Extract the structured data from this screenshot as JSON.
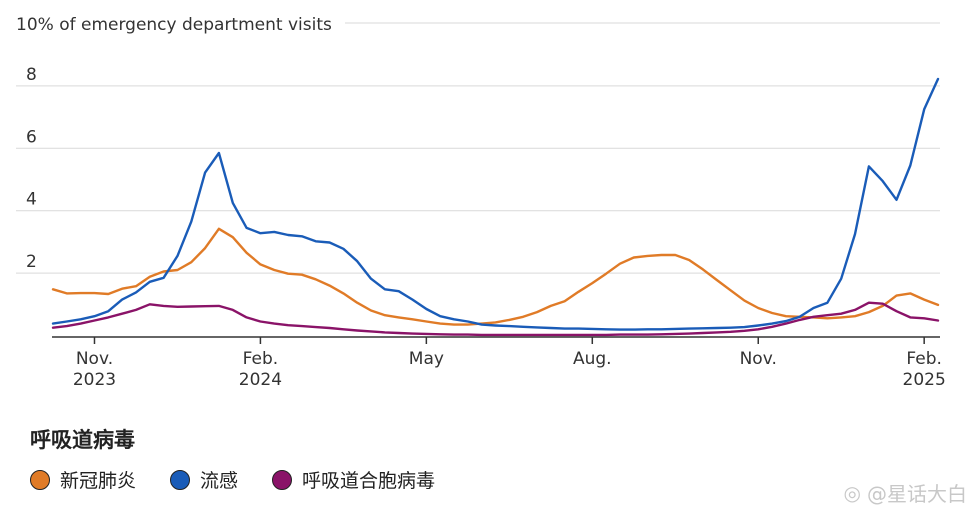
{
  "chart_data": {
    "type": "line",
    "ylabel": "10% of emergency department visits",
    "y_ticks": [
      2,
      4,
      6,
      8
    ],
    "ylim": [
      0,
      9
    ],
    "xlim": [
      0,
      64
    ],
    "x_ticks": [
      {
        "x": 3,
        "label": "Nov.",
        "sublabel": "2023"
      },
      {
        "x": 15,
        "label": "Feb.",
        "sublabel": "2024"
      },
      {
        "x": 27,
        "label": "May",
        "sublabel": ""
      },
      {
        "x": 39,
        "label": "Aug.",
        "sublabel": ""
      },
      {
        "x": 51,
        "label": "Nov.",
        "sublabel": ""
      },
      {
        "x": 63,
        "label": "Feb.",
        "sublabel": "2025"
      }
    ],
    "x": [
      0,
      1,
      2,
      3,
      4,
      5,
      6,
      7,
      8,
      9,
      10,
      11,
      12,
      13,
      14,
      15,
      16,
      17,
      18,
      19,
      20,
      21,
      22,
      23,
      24,
      25,
      26,
      27,
      28,
      29,
      30,
      31,
      32,
      33,
      34,
      35,
      36,
      37,
      38,
      39,
      40,
      41,
      42,
      43,
      44,
      45,
      46,
      47,
      48,
      49,
      50,
      51,
      52,
      53,
      54,
      55,
      56,
      57,
      58,
      59,
      60,
      61,
      62,
      63,
      64
    ],
    "series": [
      {
        "name": "新冠肺炎",
        "color": "#e07b27",
        "values": [
          1.48,
          1.35,
          1.36,
          1.36,
          1.33,
          1.5,
          1.58,
          1.88,
          2.05,
          2.1,
          2.35,
          2.8,
          3.42,
          3.15,
          2.65,
          2.28,
          2.1,
          1.98,
          1.95,
          1.8,
          1.6,
          1.35,
          1.05,
          0.8,
          0.65,
          0.58,
          0.52,
          0.45,
          0.38,
          0.35,
          0.35,
          0.38,
          0.42,
          0.5,
          0.6,
          0.75,
          0.95,
          1.1,
          1.4,
          1.68,
          1.98,
          2.3,
          2.5,
          2.55,
          2.58,
          2.58,
          2.42,
          2.12,
          1.78,
          1.45,
          1.12,
          0.88,
          0.72,
          0.62,
          0.6,
          0.58,
          0.55,
          0.58,
          0.62,
          0.75,
          0.95,
          1.28,
          1.35,
          1.15,
          0.98
        ]
      },
      {
        "name": "流感",
        "color": "#1a5cb8",
        "values": [
          0.38,
          0.45,
          0.52,
          0.62,
          0.78,
          1.15,
          1.38,
          1.72,
          1.85,
          2.55,
          3.65,
          5.22,
          5.85,
          4.25,
          3.45,
          3.28,
          3.32,
          3.22,
          3.18,
          3.02,
          2.98,
          2.78,
          2.38,
          1.82,
          1.48,
          1.42,
          1.15,
          0.85,
          0.62,
          0.52,
          0.45,
          0.35,
          0.32,
          0.3,
          0.28,
          0.26,
          0.24,
          0.22,
          0.22,
          0.21,
          0.2,
          0.19,
          0.19,
          0.2,
          0.2,
          0.21,
          0.22,
          0.23,
          0.24,
          0.25,
          0.27,
          0.32,
          0.38,
          0.46,
          0.6,
          0.88,
          1.05,
          1.82,
          3.25,
          5.42,
          4.95,
          4.35,
          5.45,
          7.25,
          8.22
        ]
      },
      {
        "name": "呼吸道合胞病毒",
        "color": "#8a1368",
        "values": [
          0.25,
          0.3,
          0.38,
          0.48,
          0.58,
          0.7,
          0.82,
          1.0,
          0.95,
          0.92,
          0.93,
          0.94,
          0.95,
          0.82,
          0.58,
          0.45,
          0.38,
          0.33,
          0.3,
          0.27,
          0.24,
          0.2,
          0.16,
          0.13,
          0.1,
          0.08,
          0.06,
          0.05,
          0.04,
          0.03,
          0.03,
          0.02,
          0.02,
          0.02,
          0.02,
          0.02,
          0.02,
          0.02,
          0.02,
          0.02,
          0.02,
          0.03,
          0.03,
          0.03,
          0.04,
          0.05,
          0.06,
          0.08,
          0.1,
          0.12,
          0.15,
          0.2,
          0.28,
          0.38,
          0.5,
          0.6,
          0.65,
          0.7,
          0.82,
          1.05,
          1.02,
          0.78,
          0.58,
          0.55,
          0.48
        ]
      }
    ]
  },
  "legend": {
    "title": "呼吸道病毒",
    "items": [
      {
        "label": "新冠肺炎",
        "color": "#e07b27"
      },
      {
        "label": "流感",
        "color": "#1a5cb8"
      },
      {
        "label": "呼吸道合胞病毒",
        "color": "#8a1368"
      }
    ]
  },
  "watermark": {
    "icon": "weibo-icon",
    "text": "@星话大白"
  }
}
